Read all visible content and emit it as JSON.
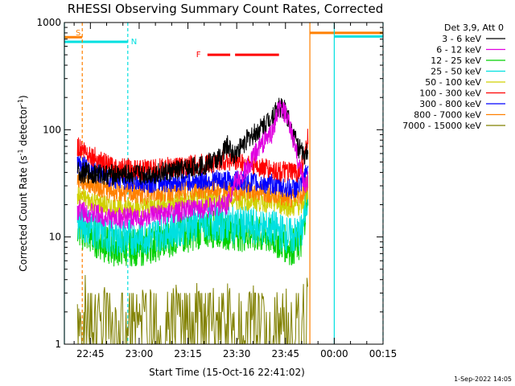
{
  "chart_data": {
    "type": "line",
    "title": "RHESSI Observing Summary Count Rates, Corrected",
    "xlabel": "Start Time (15-Oct-16 22:41:02)",
    "ylabel_main": "Corrected Count Rate (s",
    "ylabel_sup1": "-1",
    "ylabel_mid": " detector",
    "ylabel_sup2": "-1",
    "ylabel_end": ")",
    "yscale": "log",
    "ylim": [
      1,
      1000
    ],
    "xlim_minutes": [
      -4,
      94
    ],
    "x_tick_labels": [
      {
        "label": "22:45",
        "minute": 4
      },
      {
        "label": "23:00",
        "minute": 19
      },
      {
        "label": "23:15",
        "minute": 34
      },
      {
        "label": "23:30",
        "minute": 49
      },
      {
        "label": "23:45",
        "minute": 64
      },
      {
        "label": "00:00",
        "minute": 79
      },
      {
        "label": "00:15",
        "minute": 94
      }
    ],
    "y_tick_labels": [
      {
        "label": "1",
        "value": 1
      },
      {
        "label": "10",
        "value": 10
      },
      {
        "label": "100",
        "value": 100
      },
      {
        "label": "1000",
        "value": 1000
      }
    ],
    "legend_header": "Det 3,9, Att 0",
    "series": [
      {
        "name": "3 - 6 keV",
        "color": "#000000",
        "x": [
          0,
          10,
          20,
          30,
          36,
          40,
          44,
          46,
          48,
          52,
          56,
          60,
          62,
          64,
          66,
          68,
          70,
          71
        ],
        "y": [
          40,
          38,
          38,
          41,
          45,
          48,
          55,
          72,
          58,
          80,
          100,
          135,
          165,
          150,
          100,
          68,
          55,
          65
        ]
      },
      {
        "name": "6 - 12 keV",
        "color": "#e000e0",
        "x": [
          0,
          10,
          20,
          30,
          40,
          46,
          48,
          52,
          56,
          60,
          62,
          64,
          66,
          68,
          70,
          71
        ],
        "y": [
          18,
          15,
          15,
          17,
          19,
          20,
          30,
          42,
          70,
          95,
          160,
          140,
          90,
          50,
          30,
          35
        ]
      },
      {
        "name": "12 - 25 keV",
        "color": "#00d000",
        "x": [
          0,
          10,
          20,
          30,
          40,
          50,
          60,
          66,
          69,
          71
        ],
        "y": [
          12,
          8,
          8,
          10,
          12,
          11,
          10,
          8,
          9,
          30
        ]
      },
      {
        "name": "25 - 50 keV",
        "color": "#00e0e0",
        "x": [
          0,
          10,
          20,
          30,
          40,
          50,
          60,
          66,
          69,
          71
        ],
        "y": [
          14,
          10,
          10,
          12,
          14,
          13,
          12,
          10,
          11,
          28
        ]
      },
      {
        "name": "50 - 100 keV",
        "color": "#d0d000",
        "x": [
          0,
          10,
          20,
          30,
          40,
          50,
          60,
          66,
          69,
          71
        ],
        "y": [
          24,
          19,
          19,
          21,
          23,
          22,
          21,
          19,
          20,
          28
        ]
      },
      {
        "name": "100 - 300 keV",
        "color": "#ff0000",
        "x": [
          0,
          10,
          20,
          30,
          40,
          46,
          50,
          55,
          60,
          64,
          68,
          70,
          71
        ],
        "y": [
          70,
          45,
          42,
          45,
          48,
          52,
          50,
          46,
          42,
          40,
          40,
          55,
          90
        ]
      },
      {
        "name": "300 - 800 keV",
        "color": "#0000ff",
        "x": [
          0,
          10,
          20,
          30,
          40,
          50,
          60,
          66,
          69,
          71
        ],
        "y": [
          48,
          36,
          32,
          33,
          34,
          33,
          31,
          28,
          30,
          45
        ]
      },
      {
        "name": "800 - 7000 keV",
        "color": "#ff8000",
        "x": [
          0,
          10,
          20,
          30,
          40,
          50,
          60,
          66,
          69,
          71
        ],
        "y": [
          35,
          27,
          25,
          27,
          28,
          27,
          26,
          23,
          25,
          35
        ]
      },
      {
        "name": "7000 - 15000 keV",
        "color": "#808000",
        "x": [
          0,
          10,
          20,
          30,
          40,
          50,
          60,
          66,
          69,
          71
        ],
        "y": [
          2.4,
          1.6,
          1.5,
          1.7,
          1.8,
          1.7,
          1.6,
          1.5,
          2.5,
          4.0
        ]
      }
    ],
    "flag_bars": [
      {
        "label": "S",
        "color": "#ff8000",
        "level": 730,
        "x_start": -4,
        "x_end": 1.5
      },
      {
        "label": "N",
        "color": "#00e0e0",
        "level": 660,
        "x_start": -4,
        "x_end": 15.5
      },
      {
        "label": "F",
        "color": "#ff0000",
        "level": 500,
        "x_start": 40,
        "x_end": 47
      },
      {
        "label": "",
        "color": "#ff0000",
        "level": 500,
        "x_start": 48.5,
        "x_end": 62
      },
      {
        "label": "",
        "color": "#ff8000",
        "level": 800,
        "x_start": 71.5,
        "x_end": 94
      },
      {
        "label": "",
        "color": "#00e0e0",
        "level": 740,
        "x_start": 79,
        "x_end": 94
      }
    ],
    "vertical_markers": [
      {
        "minute": -4,
        "color": "#00e0e0",
        "style": "solid"
      },
      {
        "minute": 1.5,
        "color": "#ff8000",
        "style": "dashed"
      },
      {
        "minute": 15.5,
        "color": "#00e0e0",
        "style": "dashed"
      },
      {
        "minute": 71.5,
        "color": "#ff8000",
        "style": "solid"
      },
      {
        "minute": 79,
        "color": "#00e0e0",
        "style": "solid"
      },
      {
        "minute": 94,
        "color": "#00e0e0",
        "style": "dashed"
      }
    ]
  },
  "footer": {
    "timestamp": "1-Sep-2022 14:05"
  }
}
